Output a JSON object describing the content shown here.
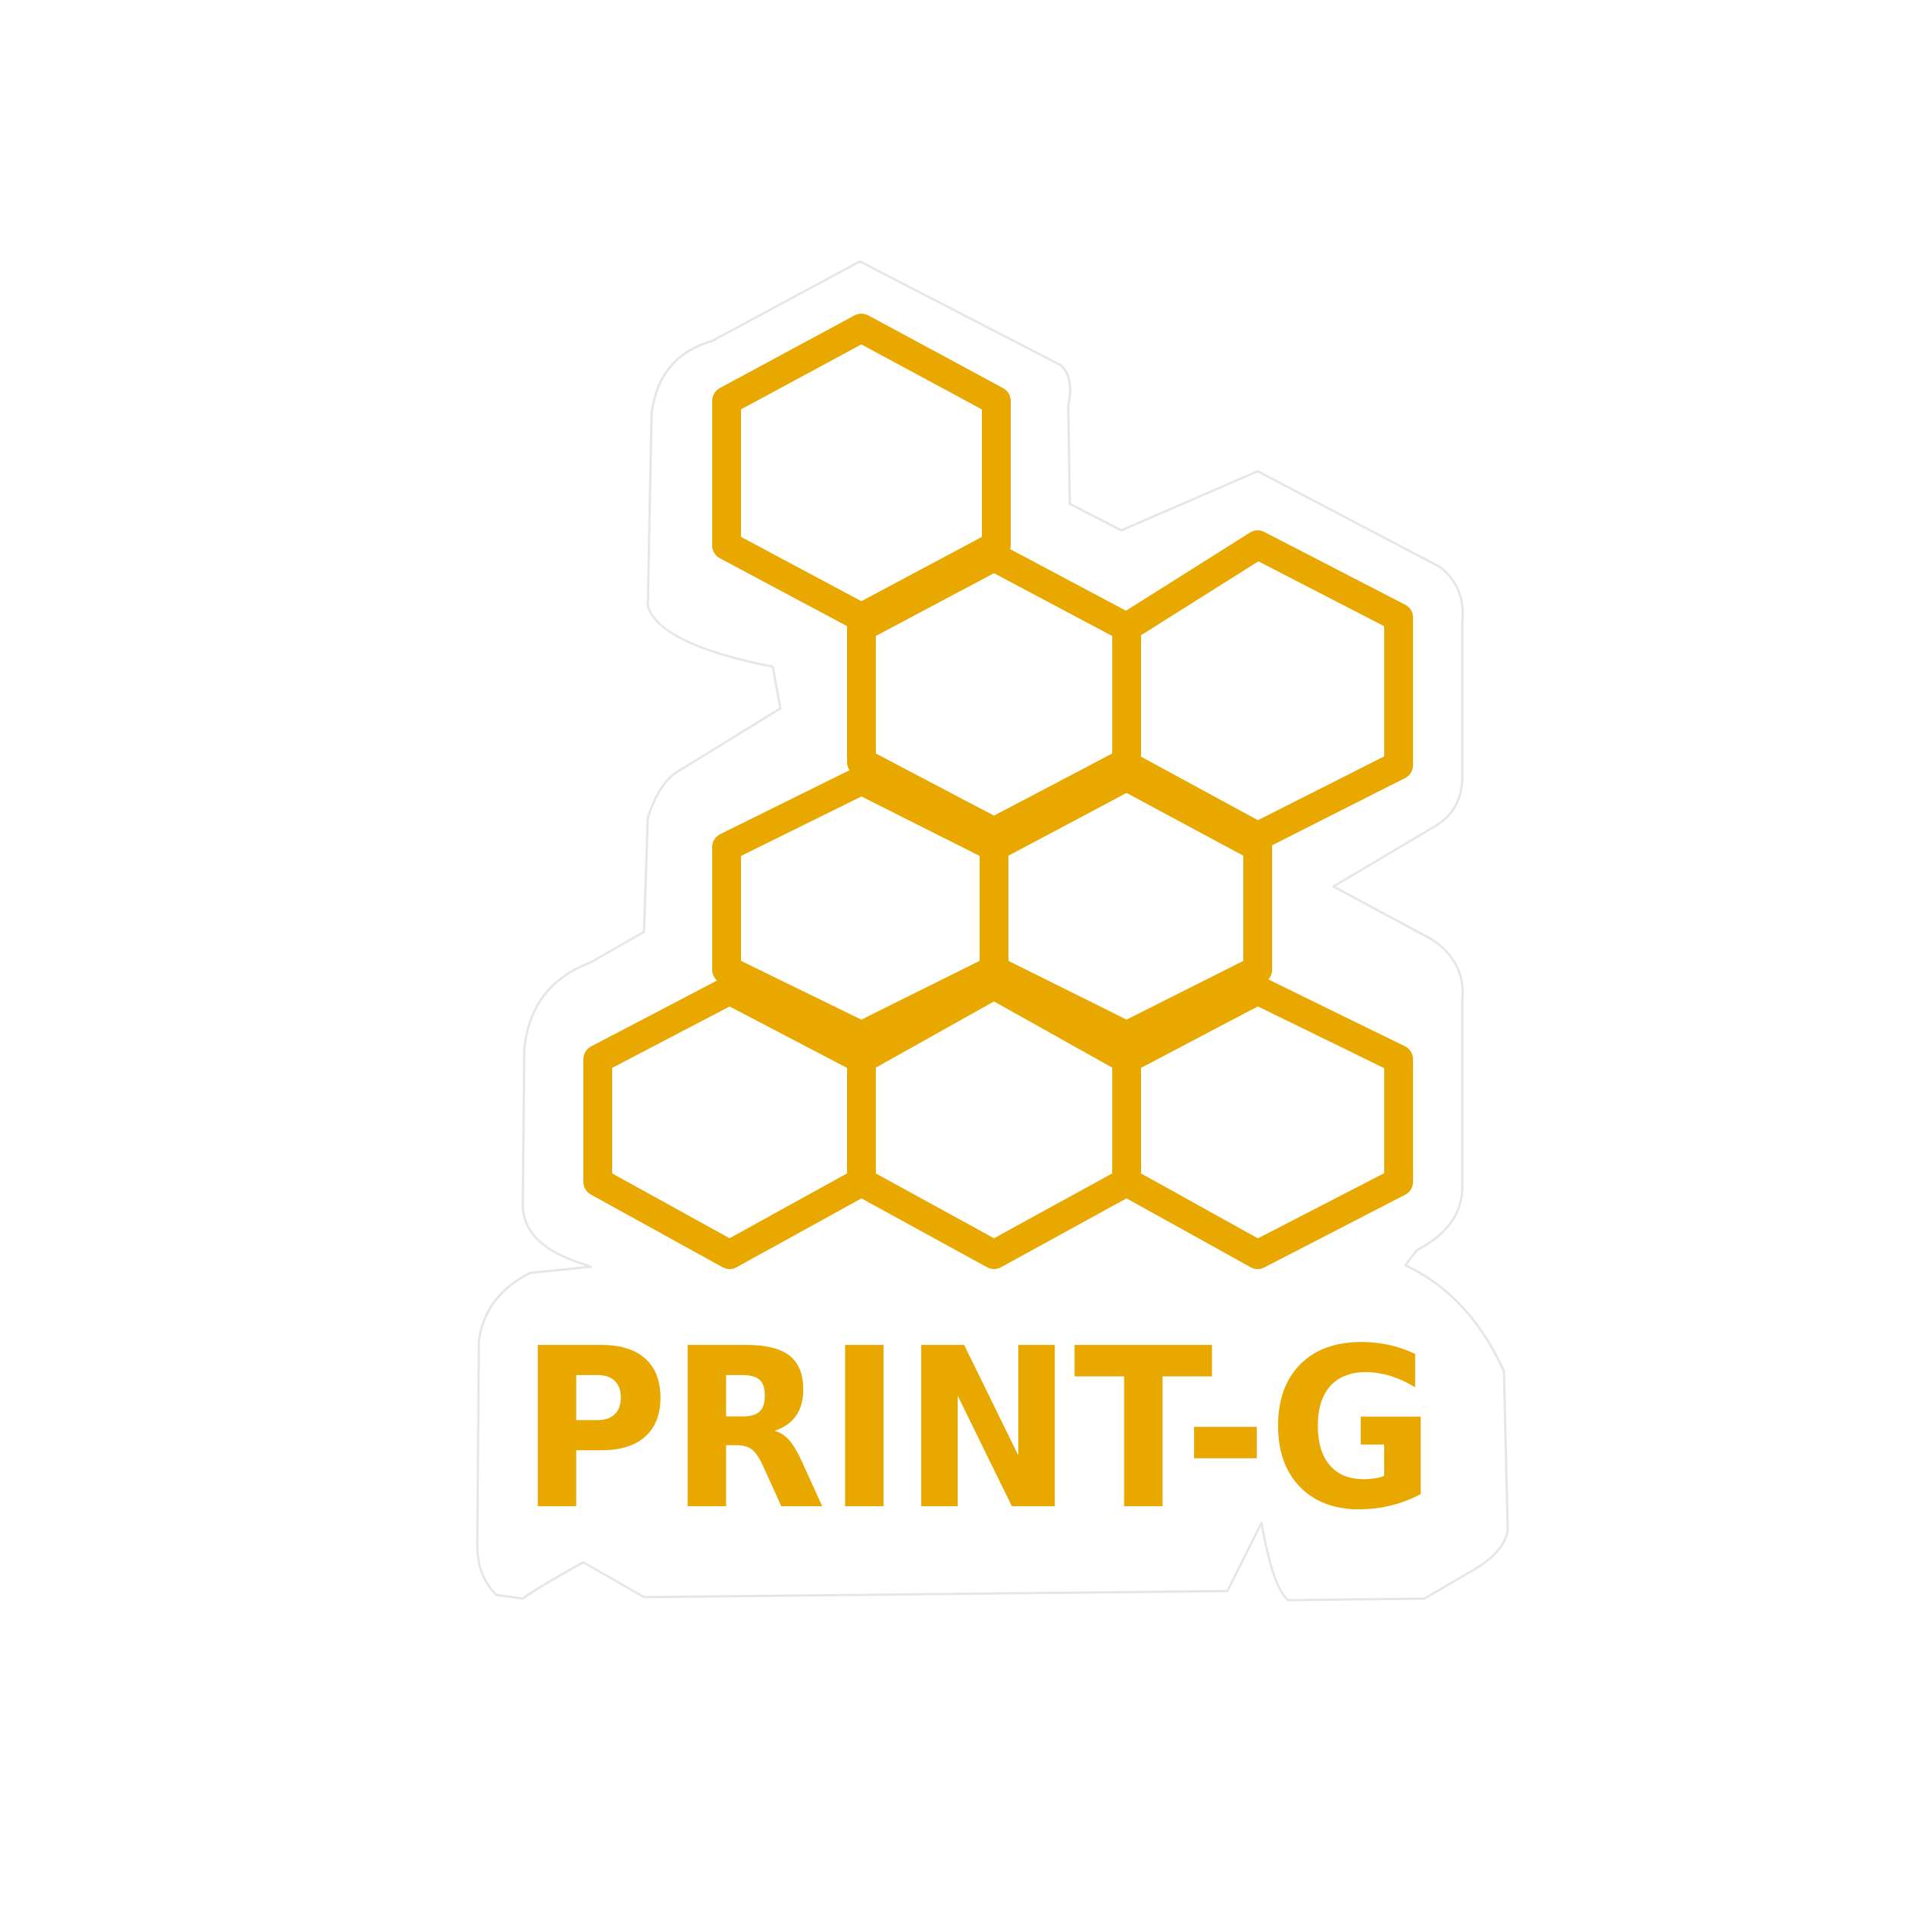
{
  "logo": {
    "wordmark": "PRINT-G",
    "accent_color": "#e8a800",
    "background_color": "#ffffff",
    "icon": "honeycomb-icon"
  }
}
